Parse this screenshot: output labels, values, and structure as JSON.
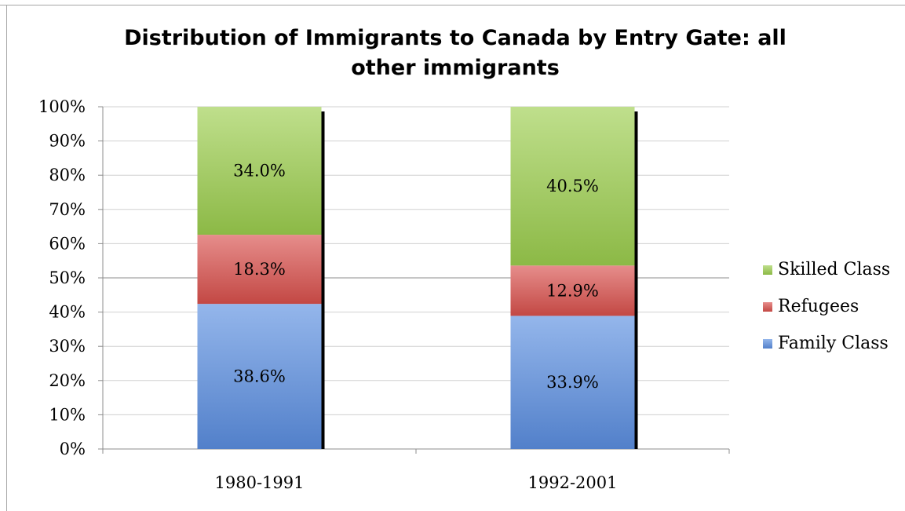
{
  "chart_data": {
    "type": "bar",
    "stacked": true,
    "title": "Distribution of Immigrants to Canada by Entry Gate: all other immigrants",
    "categories": [
      "1980-1991",
      "1992-2001"
    ],
    "series": [
      {
        "name": "Family Class",
        "values": [
          38.6,
          33.9
        ],
        "color": "#5b8ee0",
        "labels": [
          "38.6%",
          "33.9%"
        ]
      },
      {
        "name": "Refugees",
        "values": [
          18.3,
          12.9
        ],
        "color": "#d9504c",
        "labels": [
          "18.3%",
          "12.9%"
        ]
      },
      {
        "name": "Skilled Class",
        "values": [
          34.0,
          40.5
        ],
        "color": "#9cce4e",
        "labels": [
          "34.0%",
          "40.5%"
        ]
      }
    ],
    "stack_heights_percent": {
      "Family Class": [
        42.4,
        38.9
      ],
      "Refugees": [
        20.2,
        14.7
      ],
      "Skilled Class": [
        37.4,
        46.4
      ]
    },
    "ylim": [
      0,
      100
    ],
    "yticks": [
      "0%",
      "10%",
      "20%",
      "30%",
      "40%",
      "50%",
      "60%",
      "70%",
      "80%",
      "90%",
      "100%"
    ],
    "grid": true,
    "legend_position": "right",
    "legend_order": [
      "Skilled Class",
      "Refugees",
      "Family Class"
    ]
  }
}
